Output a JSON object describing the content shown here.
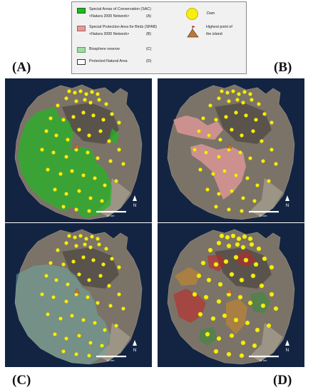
{
  "legend": {
    "sac_title": "Special Areas of Conservation (SAC)",
    "sac_network": "<Natura 2000 Network>",
    "sac_letter": "(A)",
    "spab_title": "Special Protection Area for Birds (SPAB)",
    "spab_network": "<Natura 2000 Network>",
    "spab_letter": "(B)",
    "bio_title": "Biosphere reserve",
    "bio_letter": "(C)",
    "pna_title": "Protected Natural Area",
    "pna_letter": "(D)",
    "dam_label": "Dam",
    "peak_label_1": "Highest point of",
    "peak_label_2": "the island"
  },
  "panels": {
    "a_label": "(A)",
    "b_label": "(B)",
    "c_label": "(C)",
    "d_label": "(D)"
  },
  "map": {
    "scale_label": "20 km",
    "north_label": "N"
  },
  "colors": {
    "sac": "#22b622",
    "spab": "#e39a9a",
    "biosphere": "#9edd9e",
    "dam": "#f6ee10",
    "sea": "#122442"
  }
}
